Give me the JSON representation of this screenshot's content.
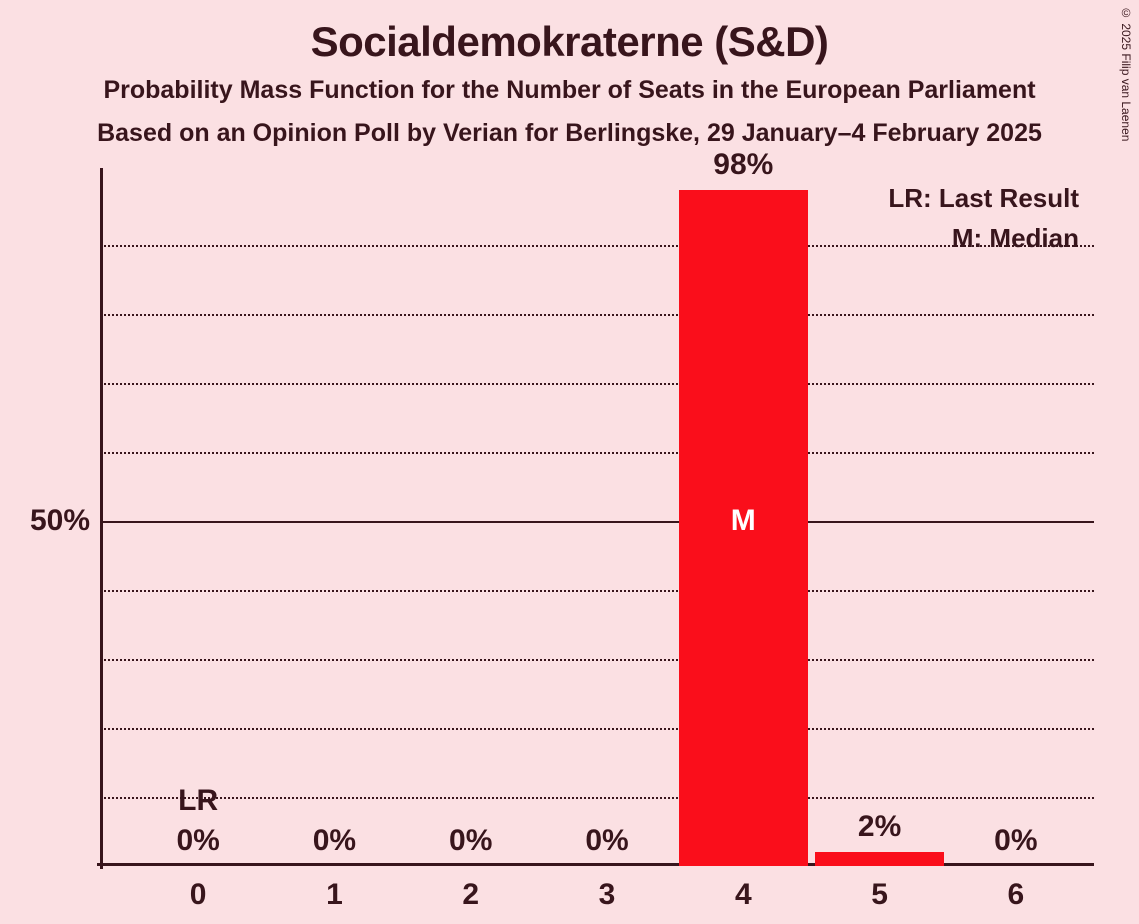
{
  "title": "Socialdemokraterne (S&D)",
  "subtitle1": "Probability Mass Function for the Number of Seats in the European Parliament",
  "subtitle2": "Based on an Opinion Poll by Verian for Berlingske, 29 January–4 February 2025",
  "copyright": "© 2025 Filip van Laenen",
  "legend": {
    "lr": "LR: Last Result",
    "m": "M: Median"
  },
  "chart": {
    "type": "bar",
    "background_color": "#fbe0e3",
    "text_color": "#38151c",
    "bar_color": "#fa0e1b",
    "median_text_color": "#ffffff",
    "grid_color": "#38151c",
    "categories": [
      "0",
      "1",
      "2",
      "3",
      "4",
      "5",
      "6"
    ],
    "values": [
      0,
      0,
      0,
      0,
      98,
      2,
      0
    ],
    "value_labels": [
      "0%",
      "0%",
      "0%",
      "0%",
      "98%",
      "2%",
      "0%"
    ],
    "lr_index": 0,
    "lr_text": "LR",
    "median_index": 4,
    "median_text": "M",
    "y_axis": {
      "min": 0,
      "max": 100,
      "gridlines": [
        10,
        20,
        30,
        40,
        50,
        60,
        70,
        80,
        90
      ],
      "solid_at": 50,
      "labels": [
        {
          "value": 50,
          "text": "50%"
        }
      ]
    },
    "title_fontsize": 42,
    "subtitle_fontsize": 25,
    "label_fontsize": 30,
    "legend_fontsize": 26,
    "bar_width_ratio": 0.95
  }
}
